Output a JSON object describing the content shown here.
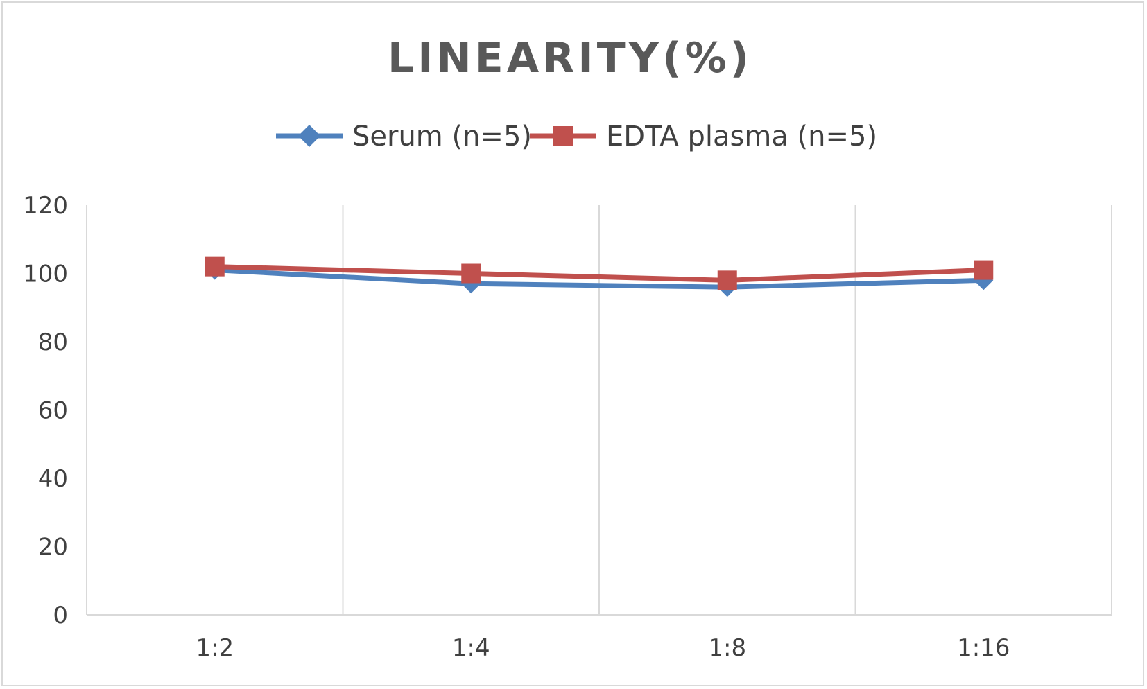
{
  "chart_data": {
    "type": "line",
    "title": "LINEARITY(%)",
    "xlabel": "",
    "ylabel": "",
    "categories": [
      "1:2",
      "1:4",
      "1:8",
      "1:16"
    ],
    "ylim": [
      0,
      120
    ],
    "yticks": [
      0,
      20,
      40,
      60,
      80,
      100,
      120
    ],
    "grid": "vertical",
    "legend": "top-center",
    "series": [
      {
        "name": "Serum (n=5)",
        "values": [
          101,
          97,
          96,
          98
        ],
        "color": "#4f81bd",
        "marker": "diamond"
      },
      {
        "name": "EDTA plasma (n=5)",
        "values": [
          102,
          100,
          98,
          101
        ],
        "color": "#c0504d",
        "marker": "square"
      }
    ]
  }
}
